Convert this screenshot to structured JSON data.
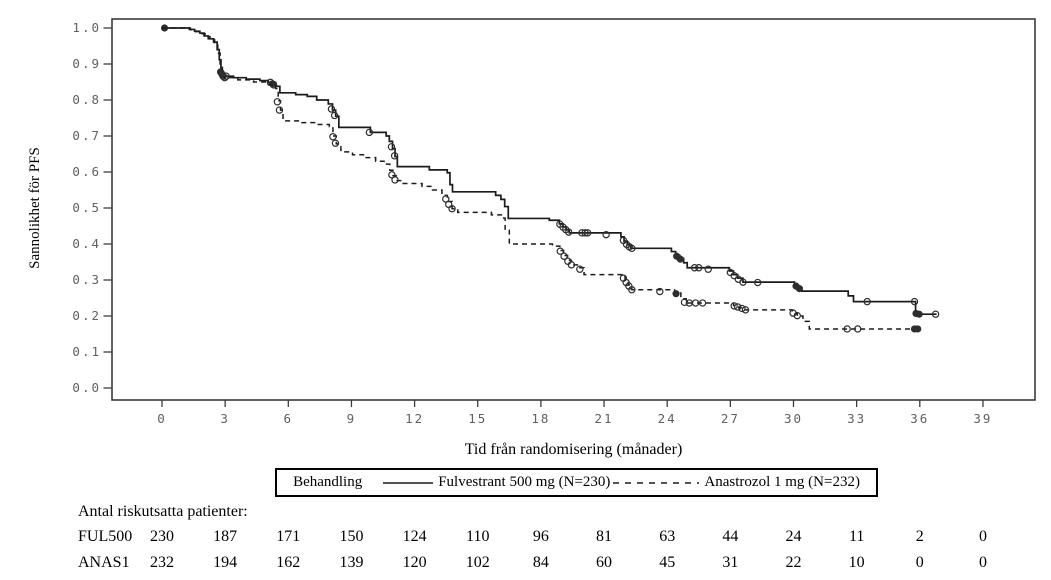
{
  "colors": {
    "background": "#ffffff",
    "axis": "#2e2e2e",
    "tick": "#3d3d3d",
    "tick_label": "#606060",
    "curve": "#1b1b1b",
    "marker": "#2e2e2e",
    "text": "#000000"
  },
  "chart_data": {
    "type": "line",
    "subtype": "kaplan-meier-step",
    "title": "",
    "xlabel": "Tid från randomisering (månader)",
    "ylabel": "Sannolikhet för PFS",
    "xlim": [
      -2.4,
      41.5
    ],
    "ylim": [
      -0.033,
      1.025
    ],
    "grid": false,
    "legend_position": "bottom-box",
    "x_tick_values": [
      0,
      3,
      6,
      9,
      12,
      15,
      18,
      21,
      24,
      27,
      30,
      33,
      36,
      39
    ],
    "x_tick_labels": [
      "0",
      "3",
      "6",
      "9",
      "12",
      "15",
      "18",
      "21",
      "24",
      "27",
      "30",
      "33",
      "36",
      "39"
    ],
    "y_tick_values": [
      0.0,
      0.1,
      0.2,
      0.3,
      0.4,
      0.5,
      0.6,
      0.7,
      0.8,
      0.9,
      1.0
    ],
    "y_tick_labels": [
      "0.0",
      "0.1",
      "0.2",
      "0.3",
      "0.4",
      "0.5",
      "0.6",
      "0.7",
      "0.8",
      "0.9",
      "1.0"
    ],
    "legend": {
      "title": "Behandling",
      "entries": [
        {
          "label": "Fulvestrant 500 mg (N=230)",
          "line_style": "solid"
        },
        {
          "label": "Anastrozol 1 mg (N=232)",
          "line_style": "dashed"
        }
      ]
    },
    "series": [
      {
        "name": "Fulvestrant 500 mg (N=230)",
        "style": "solid",
        "steps": [
          [
            0,
            1.0
          ],
          [
            1.15,
            1.0
          ],
          [
            1.3,
            0.996
          ],
          [
            1.55,
            0.991
          ],
          [
            1.8,
            0.986
          ],
          [
            2.0,
            0.978
          ],
          [
            2.2,
            0.97
          ],
          [
            2.45,
            0.961
          ],
          [
            2.62,
            0.94
          ],
          [
            2.72,
            0.912
          ],
          [
            2.8,
            0.866
          ],
          [
            3.4,
            0.862
          ],
          [
            4.0,
            0.858
          ],
          [
            4.65,
            0.854
          ],
          [
            5.05,
            0.849
          ],
          [
            5.4,
            0.838
          ],
          [
            5.6,
            0.82
          ],
          [
            6.35,
            0.815
          ],
          [
            6.9,
            0.81
          ],
          [
            7.35,
            0.8
          ],
          [
            7.9,
            0.789
          ],
          [
            8.1,
            0.772
          ],
          [
            8.25,
            0.755
          ],
          [
            8.4,
            0.724
          ],
          [
            9.9,
            0.71
          ],
          [
            10.65,
            0.7
          ],
          [
            10.8,
            0.685
          ],
          [
            10.95,
            0.665
          ],
          [
            11.07,
            0.643
          ],
          [
            11.18,
            0.615
          ],
          [
            12.7,
            0.606
          ],
          [
            13.55,
            0.598
          ],
          [
            13.68,
            0.565
          ],
          [
            13.8,
            0.545
          ],
          [
            15.85,
            0.535
          ],
          [
            16.1,
            0.524
          ],
          [
            16.28,
            0.504
          ],
          [
            16.45,
            0.471
          ],
          [
            18.4,
            0.466
          ],
          [
            18.88,
            0.456
          ],
          [
            19.05,
            0.447
          ],
          [
            19.2,
            0.439
          ],
          [
            19.35,
            0.431
          ],
          [
            21.8,
            0.42
          ],
          [
            21.95,
            0.408
          ],
          [
            22.1,
            0.398
          ],
          [
            22.28,
            0.388
          ],
          [
            24.2,
            0.379
          ],
          [
            24.4,
            0.368
          ],
          [
            24.6,
            0.36
          ],
          [
            24.78,
            0.348
          ],
          [
            24.95,
            0.334
          ],
          [
            26.95,
            0.325
          ],
          [
            27.15,
            0.315
          ],
          [
            27.35,
            0.305
          ],
          [
            27.6,
            0.294
          ],
          [
            30.05,
            0.287
          ],
          [
            30.2,
            0.279
          ],
          [
            30.4,
            0.269
          ],
          [
            32.6,
            0.256
          ],
          [
            32.85,
            0.24
          ],
          [
            35.8,
            0.205
          ],
          [
            36.8,
            0.205
          ]
        ],
        "censor_marks_open": [
          [
            2.9,
            0.866
          ],
          [
            3.05,
            0.866
          ],
          [
            5.15,
            0.849
          ],
          [
            5.3,
            0.842
          ],
          [
            8.05,
            0.775
          ],
          [
            8.2,
            0.757
          ],
          [
            9.85,
            0.71
          ],
          [
            10.9,
            0.67
          ],
          [
            11.05,
            0.645
          ],
          [
            18.9,
            0.455
          ],
          [
            19.05,
            0.447
          ],
          [
            19.18,
            0.44
          ],
          [
            19.32,
            0.433
          ],
          [
            19.95,
            0.431
          ],
          [
            20.1,
            0.431
          ],
          [
            20.22,
            0.431
          ],
          [
            21.1,
            0.426
          ],
          [
            21.92,
            0.41
          ],
          [
            22.07,
            0.399
          ],
          [
            22.2,
            0.392
          ],
          [
            22.32,
            0.388
          ],
          [
            25.3,
            0.334
          ],
          [
            25.5,
            0.334
          ],
          [
            25.95,
            0.33
          ],
          [
            27.0,
            0.321
          ],
          [
            27.18,
            0.312
          ],
          [
            27.38,
            0.302
          ],
          [
            27.6,
            0.294
          ],
          [
            28.3,
            0.293
          ],
          [
            33.5,
            0.24
          ],
          [
            35.75,
            0.24
          ],
          [
            36.75,
            0.205
          ]
        ],
        "censor_marks_filled": [
          [
            0.12,
            1.0
          ],
          [
            2.78,
            0.878
          ],
          [
            5.25,
            0.845
          ],
          [
            24.45,
            0.366
          ],
          [
            24.62,
            0.358
          ],
          [
            30.12,
            0.283
          ],
          [
            30.28,
            0.276
          ],
          [
            35.82,
            0.207
          ],
          [
            35.97,
            0.205
          ]
        ]
      },
      {
        "name": "Anastrozol 1 mg (N=232)",
        "style": "dashed",
        "steps": [
          [
            0,
            1.0
          ],
          [
            1.15,
            1.0
          ],
          [
            1.35,
            0.995
          ],
          [
            1.6,
            0.99
          ],
          [
            1.85,
            0.984
          ],
          [
            2.05,
            0.976
          ],
          [
            2.28,
            0.967
          ],
          [
            2.5,
            0.955
          ],
          [
            2.65,
            0.93
          ],
          [
            2.76,
            0.9
          ],
          [
            2.87,
            0.862
          ],
          [
            3.6,
            0.856
          ],
          [
            4.35,
            0.85
          ],
          [
            5.05,
            0.843
          ],
          [
            5.4,
            0.832
          ],
          [
            5.52,
            0.798
          ],
          [
            5.63,
            0.772
          ],
          [
            5.75,
            0.742
          ],
          [
            6.6,
            0.737
          ],
          [
            7.25,
            0.732
          ],
          [
            7.95,
            0.726
          ],
          [
            8.12,
            0.7
          ],
          [
            8.28,
            0.678
          ],
          [
            8.5,
            0.656
          ],
          [
            9.05,
            0.648
          ],
          [
            9.65,
            0.64
          ],
          [
            10.15,
            0.63
          ],
          [
            10.6,
            0.622
          ],
          [
            10.82,
            0.605
          ],
          [
            10.97,
            0.59
          ],
          [
            11.12,
            0.576
          ],
          [
            11.4,
            0.568
          ],
          [
            12.35,
            0.56
          ],
          [
            12.85,
            0.55
          ],
          [
            13.3,
            0.535
          ],
          [
            13.55,
            0.518
          ],
          [
            13.78,
            0.498
          ],
          [
            14.05,
            0.488
          ],
          [
            15.65,
            0.481
          ],
          [
            16.12,
            0.472
          ],
          [
            16.3,
            0.438
          ],
          [
            16.5,
            0.4
          ],
          [
            18.55,
            0.394
          ],
          [
            18.9,
            0.382
          ],
          [
            19.08,
            0.368
          ],
          [
            19.27,
            0.355
          ],
          [
            19.45,
            0.342
          ],
          [
            19.85,
            0.334
          ],
          [
            20.05,
            0.315
          ],
          [
            21.85,
            0.309
          ],
          [
            22.0,
            0.297
          ],
          [
            22.15,
            0.286
          ],
          [
            22.32,
            0.273
          ],
          [
            24.35,
            0.264
          ],
          [
            24.65,
            0.248
          ],
          [
            24.9,
            0.236
          ],
          [
            27.15,
            0.229
          ],
          [
            27.4,
            0.223
          ],
          [
            27.68,
            0.217
          ],
          [
            29.95,
            0.209
          ],
          [
            30.18,
            0.2
          ],
          [
            30.45,
            0.185
          ],
          [
            30.75,
            0.164
          ],
          [
            35.95,
            0.164
          ]
        ],
        "censor_marks_open": [
          [
            2.85,
            0.872
          ],
          [
            2.98,
            0.862
          ],
          [
            5.48,
            0.795
          ],
          [
            5.58,
            0.772
          ],
          [
            8.12,
            0.698
          ],
          [
            8.24,
            0.68
          ],
          [
            10.92,
            0.592
          ],
          [
            11.07,
            0.578
          ],
          [
            13.48,
            0.525
          ],
          [
            13.62,
            0.51
          ],
          [
            13.78,
            0.498
          ],
          [
            18.92,
            0.38
          ],
          [
            19.1,
            0.366
          ],
          [
            19.28,
            0.352
          ],
          [
            19.45,
            0.342
          ],
          [
            19.85,
            0.33
          ],
          [
            21.92,
            0.305
          ],
          [
            22.05,
            0.293
          ],
          [
            22.18,
            0.283
          ],
          [
            22.32,
            0.273
          ],
          [
            23.65,
            0.268
          ],
          [
            24.82,
            0.238
          ],
          [
            25.05,
            0.236
          ],
          [
            25.35,
            0.236
          ],
          [
            25.68,
            0.236
          ],
          [
            27.18,
            0.228
          ],
          [
            27.35,
            0.225
          ],
          [
            27.55,
            0.221
          ],
          [
            27.72,
            0.217
          ],
          [
            29.98,
            0.208
          ],
          [
            30.18,
            0.201
          ],
          [
            32.55,
            0.164
          ],
          [
            33.05,
            0.164
          ]
        ],
        "censor_marks_filled": [
          [
            24.42,
            0.262
          ],
          [
            35.75,
            0.164
          ],
          [
            35.9,
            0.164
          ]
        ]
      }
    ],
    "risk_table": {
      "title": "Antal riskutsatta patienter:",
      "times": [
        0,
        3,
        6,
        9,
        12,
        15,
        18,
        21,
        24,
        27,
        30,
        33,
        36,
        39
      ],
      "rows": [
        {
          "label": "FUL500",
          "values": [
            "230",
            "187",
            "171",
            "150",
            "124",
            "110",
            "96",
            "81",
            "63",
            "44",
            "24",
            "11",
            "2",
            "0"
          ]
        },
        {
          "label": "ANAS1",
          "values": [
            "232",
            "194",
            "162",
            "139",
            "120",
            "102",
            "84",
            "60",
            "45",
            "31",
            "22",
            "10",
            "0",
            "0"
          ]
        }
      ]
    }
  }
}
